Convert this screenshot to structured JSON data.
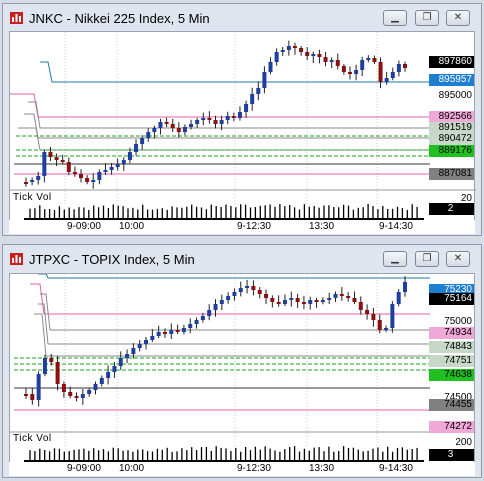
{
  "colors": {
    "window_bg": "#dfe5ee",
    "plot_bg": "#ffffff",
    "candle_up": "#1f3f9f",
    "candle_down": "#8b1010",
    "line_blue": "#1f7aa8",
    "line_pink": "#e060b0",
    "line_green": "#20a020",
    "line_gray": "#8a8a8a",
    "line_dark": "#333333"
  },
  "windows": [
    {
      "title": "JNKC - Nikkei 225 Index, 5 Min",
      "price_labels": [
        {
          "text": "897860",
          "bg": "#000000",
          "fg": "#ffffff"
        },
        {
          "text": "895957",
          "bg": "#1e7fd0",
          "fg": "#ffffff"
        },
        {
          "text": "895000",
          "bg": "",
          "fg": "#000000"
        },
        {
          "text": "892566",
          "bg": "#f0a8d8",
          "fg": "#000000"
        },
        {
          "text": "891519",
          "bg": "#c8d8c8",
          "fg": "#000000"
        },
        {
          "text": "890472",
          "bg": "#c8d8c8",
          "fg": "#000000"
        },
        {
          "text": "889176",
          "bg": "#20c020",
          "fg": "#000000"
        },
        {
          "text": "887081",
          "bg": "#808080",
          "fg": "#000000"
        }
      ],
      "volume_label": "Tick Vol",
      "volume_values": [
        {
          "text": "20",
          "bg": "",
          "fg": "#000000"
        },
        {
          "text": "2",
          "bg": "#000000",
          "fg": "#ffffff"
        }
      ],
      "time_labels": [
        "9-09:00",
        "10:00",
        "9-12:30",
        "13:30",
        "9-14:30"
      ]
    },
    {
      "title": "JTPXC - TOPIX Index, 5 Min",
      "price_labels": [
        {
          "text": "75230",
          "bg": "#1e7fd0",
          "fg": "#ffffff"
        },
        {
          "text": "75164",
          "bg": "#000000",
          "fg": "#ffffff"
        },
        {
          "text": "75000",
          "bg": "",
          "fg": "#000000"
        },
        {
          "text": "74934",
          "bg": "#f0a8d8",
          "fg": "#000000"
        },
        {
          "text": "74843",
          "bg": "#c8d8c8",
          "fg": "#000000"
        },
        {
          "text": "74751",
          "bg": "#c8d8c8",
          "fg": "#000000"
        },
        {
          "text": "74638",
          "bg": "#20c020",
          "fg": "#000000"
        },
        {
          "text": "74500",
          "bg": "",
          "fg": "#000000"
        },
        {
          "text": "74455",
          "bg": "#808080",
          "fg": "#000000"
        },
        {
          "text": "74272",
          "bg": "#f0a8d8",
          "fg": "#000000"
        }
      ],
      "volume_label": "Tick Vol",
      "volume_values": [
        {
          "text": "200",
          "bg": "",
          "fg": "#000000"
        },
        {
          "text": "3",
          "bg": "#000000",
          "fg": "#ffffff"
        }
      ],
      "time_labels": [
        "9-09:00",
        "10:00",
        "9-12:30",
        "13:30",
        "9-14:30"
      ]
    }
  ]
}
